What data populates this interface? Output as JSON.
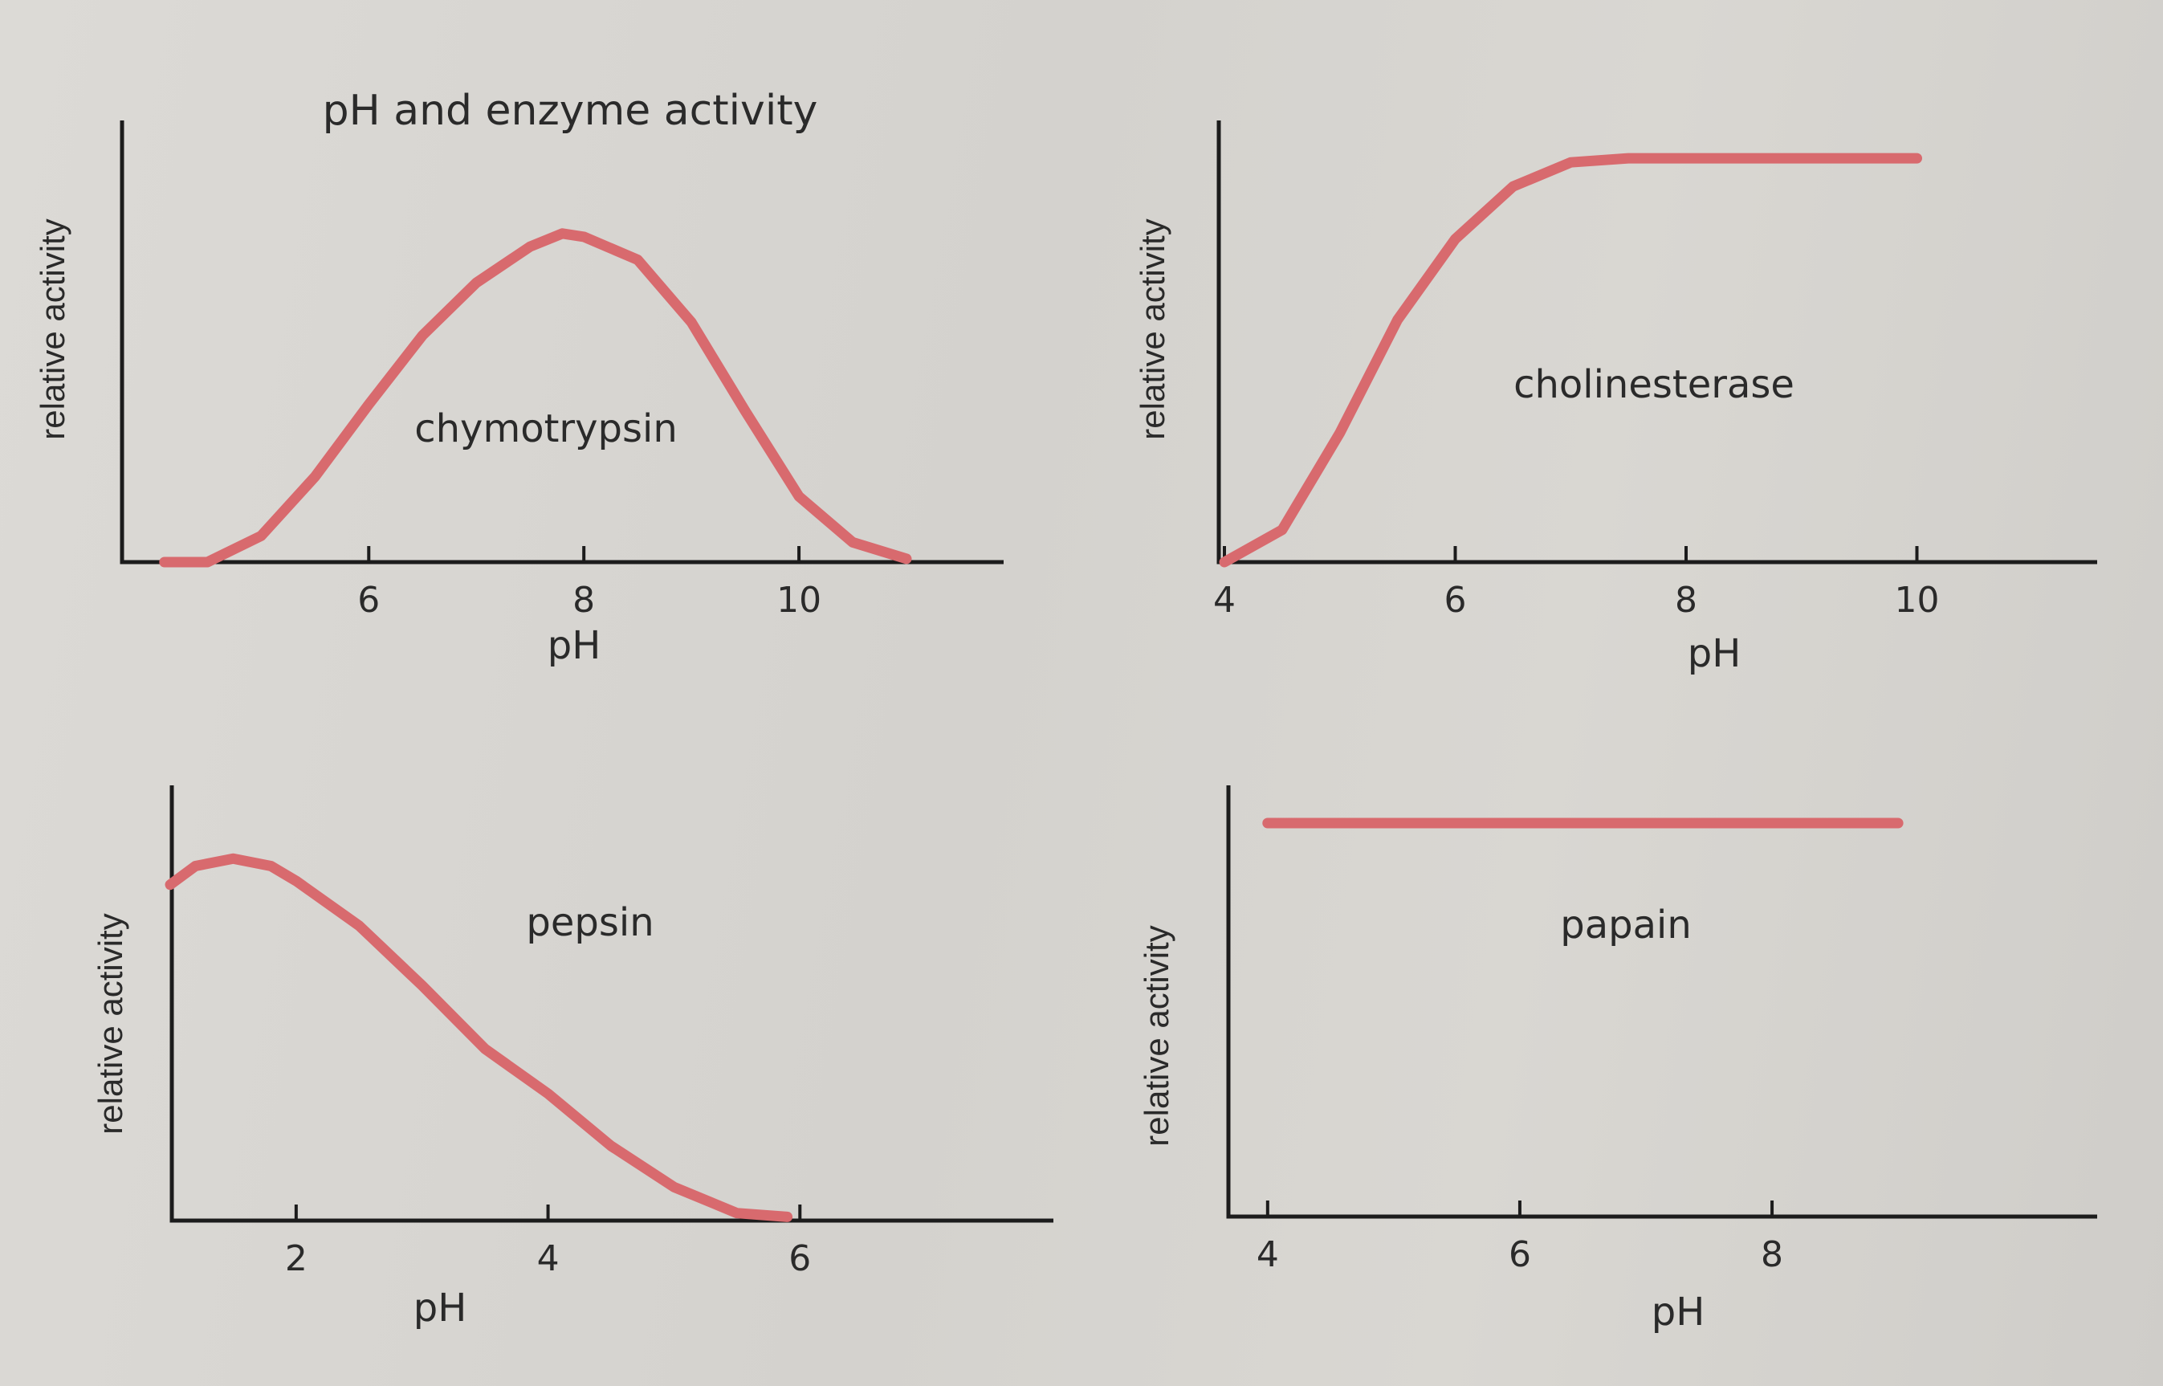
{
  "chart_data": [
    {
      "type": "line",
      "title": "pH and enzyme activity",
      "xlabel": "pH",
      "ylabel": "relative activity",
      "series": [
        {
          "name": "chymotrypsin",
          "x": [
            4.1,
            4.5,
            5.0,
            5.5,
            6.0,
            6.5,
            7.0,
            7.5,
            7.8,
            8.0,
            8.5,
            9.0,
            9.5,
            10.0,
            10.5,
            11.0
          ],
          "y": [
            0.0,
            0.0,
            0.08,
            0.26,
            0.48,
            0.69,
            0.85,
            0.96,
            1.0,
            0.99,
            0.92,
            0.73,
            0.46,
            0.2,
            0.06,
            0.01
          ]
        }
      ],
      "xticks": [
        6,
        8,
        10
      ],
      "xlim": [
        3.9,
        11.5
      ],
      "ylim": [
        0,
        1.3
      ]
    },
    {
      "type": "line",
      "title": "",
      "xlabel": "pH",
      "ylabel": "relative activity",
      "series": [
        {
          "name": "cholinesterase",
          "x": [
            4.0,
            4.5,
            5.0,
            5.5,
            6.0,
            6.5,
            7.0,
            7.5,
            8.0,
            9.0,
            10.0
          ],
          "y": [
            0.0,
            0.08,
            0.32,
            0.6,
            0.8,
            0.93,
            0.99,
            1.0,
            1.0,
            1.0,
            1.0
          ]
        }
      ],
      "xticks": [
        4,
        6,
        8,
        10
      ],
      "xlim": [
        4.0,
        11.2
      ],
      "ylim": [
        0,
        1.05
      ]
    },
    {
      "type": "line",
      "title": "",
      "xlabel": "pH",
      "ylabel": "relative activity",
      "series": [
        {
          "name": "pepsin",
          "x": [
            1.0,
            1.2,
            1.5,
            1.8,
            2.0,
            2.5,
            3.0,
            3.5,
            4.0,
            4.5,
            5.0,
            5.5,
            5.9
          ],
          "y": [
            0.9,
            0.95,
            0.97,
            0.95,
            0.91,
            0.79,
            0.63,
            0.46,
            0.34,
            0.2,
            0.09,
            0.02,
            0.01
          ]
        }
      ],
      "xticks": [
        2,
        4,
        6
      ],
      "xlim": [
        1.0,
        8.0
      ],
      "ylim": [
        0,
        1.05
      ]
    },
    {
      "type": "line",
      "title": "",
      "xlabel": "pH",
      "ylabel": "relative activity",
      "series": [
        {
          "name": "papain",
          "x": [
            4.0,
            9.0
          ],
          "y": [
            1.0,
            1.0
          ]
        }
      ],
      "xticks": [
        4,
        6,
        8
      ],
      "xlim": [
        3.6,
        10.4
      ],
      "ylim": [
        0,
        1.0
      ]
    }
  ]
}
